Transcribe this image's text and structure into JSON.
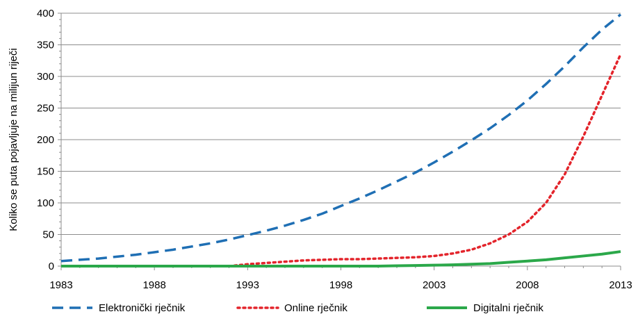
{
  "chart_data": {
    "type": "line",
    "title": "",
    "xlabel": "",
    "ylabel": "Koliko se puta pojavljuje na milijun riječi",
    "xlim": [
      1983,
      2013
    ],
    "ylim": [
      0,
      400
    ],
    "x_ticks": [
      "1983",
      "1988",
      "1993",
      "1998",
      "2003",
      "2008",
      "2013"
    ],
    "y_ticks": [
      "0",
      "50",
      "100",
      "150",
      "200",
      "250",
      "300",
      "350",
      "400"
    ],
    "grid": true,
    "legend_position": "bottom",
    "x": [
      1983,
      1984,
      1985,
      1986,
      1987,
      1988,
      1989,
      1990,
      1991,
      1992,
      1993,
      1994,
      1995,
      1996,
      1997,
      1998,
      1999,
      2000,
      2001,
      2002,
      2003,
      2004,
      2005,
      2006,
      2007,
      2008,
      2009,
      2010,
      2011,
      2012,
      2013
    ],
    "series": [
      {
        "name": "Elektronički rječnik",
        "color": "#1f6fb4",
        "style": "dashed",
        "values": [
          8,
          10,
          12,
          15,
          18,
          22,
          26,
          31,
          36,
          42,
          49,
          56,
          64,
          73,
          83,
          95,
          107,
          120,
          134,
          148,
          164,
          181,
          199,
          218,
          239,
          262,
          288,
          316,
          346,
          374,
          398
        ]
      },
      {
        "name": "Online rječnik",
        "color": "#e3242b",
        "style": "dotted",
        "values": [
          null,
          null,
          null,
          null,
          null,
          null,
          null,
          null,
          null,
          0,
          3,
          5,
          7,
          9,
          10,
          11,
          11,
          12,
          13,
          14,
          16,
          20,
          26,
          36,
          50,
          70,
          100,
          145,
          205,
          270,
          335
        ]
      },
      {
        "name": "Digitalni rječnik",
        "color": "#2ba84a",
        "style": "solid",
        "values": [
          0,
          0,
          0,
          0,
          0,
          0,
          0,
          0,
          0,
          0,
          0,
          0,
          0,
          0,
          0,
          0,
          0,
          0,
          0.5,
          1,
          1.5,
          2,
          3,
          4,
          6,
          8,
          10,
          13,
          16,
          19,
          23
        ]
      }
    ]
  }
}
